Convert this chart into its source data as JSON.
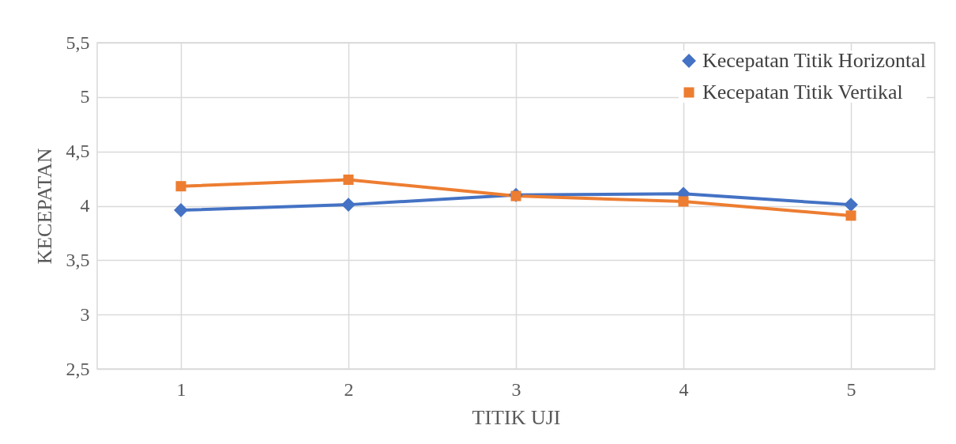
{
  "chart_data": {
    "type": "line",
    "xlabel": "TITIK UJI",
    "ylabel": "KECEPATAN",
    "categories": [
      "1",
      "2",
      "3",
      "4",
      "5"
    ],
    "series": [
      {
        "name": "Kecepatan Titik Horizontal",
        "color": "#4472c4",
        "marker": "diamond",
        "values": [
          3.96,
          4.01,
          4.1,
          4.11,
          4.01
        ]
      },
      {
        "name": "Kecepatan Titik Vertikal",
        "color": "#ed7d31",
        "marker": "square",
        "values": [
          4.18,
          4.24,
          4.09,
          4.04,
          3.91
        ]
      }
    ],
    "ylim": [
      2.5,
      5.5
    ],
    "yticks": [
      {
        "value": 2.5,
        "label": "2,5"
      },
      3,
      {
        "value": 3.5,
        "label": "3,5"
      },
      4,
      {
        "value": 4.5,
        "label": "4,5"
      },
      5,
      {
        "value": 5.5,
        "label": "5,5"
      }
    ],
    "grid": true,
    "legend": "top right"
  }
}
